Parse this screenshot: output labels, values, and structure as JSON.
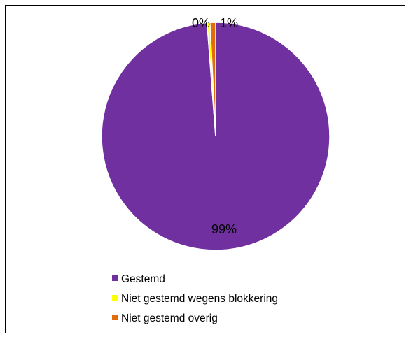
{
  "chart_data": {
    "type": "pie",
    "categories": [
      "Gestemd",
      "Niet gestemd wegens blokkering",
      "Niet gestemd overig"
    ],
    "values": [
      98.8,
      0.4,
      0.8
    ],
    "data_labels": [
      "99%",
      "0%",
      "1%"
    ],
    "colors": [
      "#7030A0",
      "#FFFF00",
      "#E36C0A"
    ],
    "start_angle_deg": 0,
    "direction": "clockwise-from-remaining",
    "legend": {
      "position": "bottom-left",
      "entries": [
        "Gestemd",
        "Niet gestemd wegens blokkering",
        "Niet gestemd overig"
      ]
    },
    "title": ""
  }
}
